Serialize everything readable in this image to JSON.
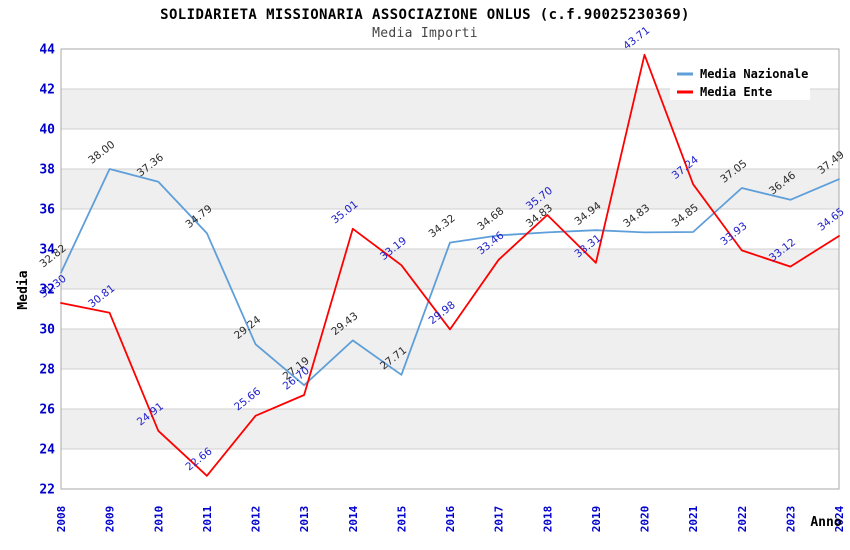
{
  "title": "SOLIDARIETA MISSIONARIA ASSOCIAZIONE ONLUS (c.f.90025230369)",
  "subtitle": "Media Importi",
  "chart_data": {
    "type": "line",
    "x": [
      2008,
      2009,
      2010,
      2011,
      2012,
      2013,
      2014,
      2015,
      2016,
      2017,
      2018,
      2019,
      2020,
      2021,
      2022,
      2023,
      2024
    ],
    "series": [
      {
        "name": "Media Nazionale",
        "color": "#5E9FD9",
        "label_color": "#2b2b2b",
        "values": [
          32.82,
          38.0,
          37.36,
          34.79,
          29.24,
          27.19,
          29.43,
          27.71,
          34.32,
          34.68,
          34.83,
          34.94,
          34.83,
          34.85,
          37.05,
          36.46,
          37.49
        ]
      },
      {
        "name": "Media Ente",
        "color": "#FF0000",
        "label_color": "#2020CC",
        "values": [
          31.3,
          30.81,
          24.91,
          22.66,
          25.66,
          26.7,
          35.01,
          33.19,
          29.98,
          33.46,
          35.7,
          33.31,
          43.71,
          37.24,
          33.93,
          33.12,
          34.65
        ]
      }
    ],
    "xlabel": "Anno",
    "ylabel": "Media",
    "ylim": [
      22,
      44
    ],
    "ytick_step": 2,
    "grid": true,
    "legend_position": "top-right",
    "band_colors": [
      "#ffffff",
      "#efefef"
    ],
    "tick_color": "#0000CC",
    "grid_color": "#d0d0d0",
    "border_color": "#a8a8a8",
    "axis_title_color": "#000000"
  }
}
